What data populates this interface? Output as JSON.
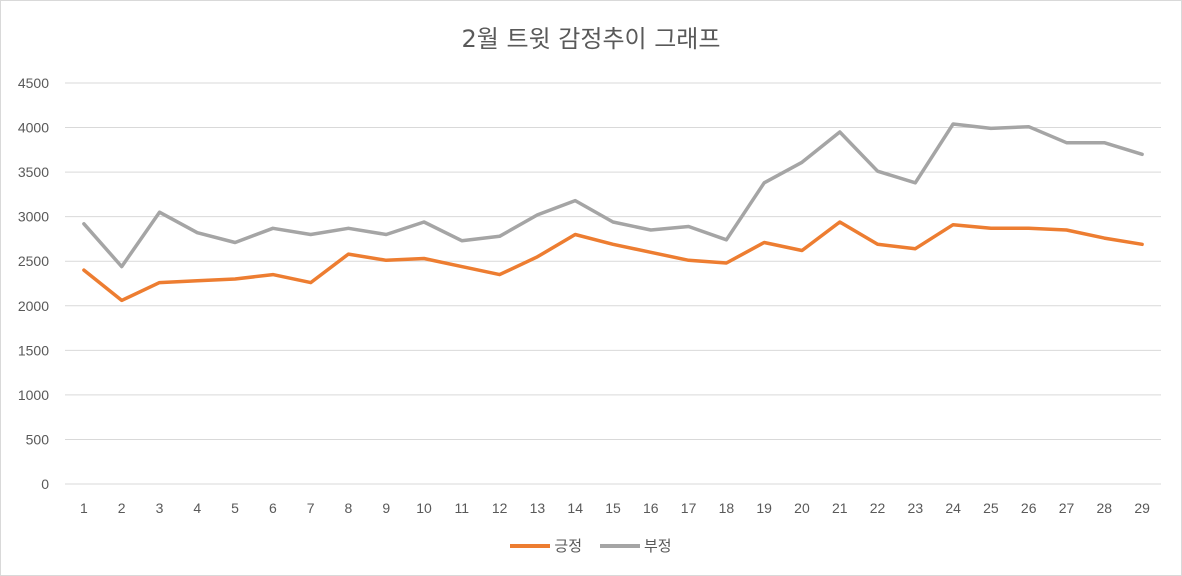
{
  "chart_data": {
    "type": "line",
    "title": "2월 트윗 감정추이 그래프",
    "xlabel": "",
    "ylabel": "",
    "categories": [
      "1",
      "2",
      "3",
      "4",
      "5",
      "6",
      "7",
      "8",
      "9",
      "10",
      "11",
      "12",
      "13",
      "14",
      "15",
      "16",
      "17",
      "18",
      "19",
      "20",
      "21",
      "22",
      "23",
      "24",
      "25",
      "26",
      "27",
      "28",
      "29"
    ],
    "yticks": [
      "0",
      "500",
      "1000",
      "1500",
      "2000",
      "2500",
      "3000",
      "3500",
      "4000",
      "4500"
    ],
    "ylim": [
      0,
      4500
    ],
    "grid": true,
    "legend_position": "bottom",
    "series": [
      {
        "name": "긍정",
        "color": "#ed7d31",
        "values": [
          2400,
          2060,
          2260,
          2280,
          2300,
          2350,
          2260,
          2580,
          2510,
          2530,
          2440,
          2350,
          2550,
          2800,
          2690,
          2600,
          2510,
          2480,
          2710,
          2620,
          2940,
          2690,
          2640,
          2910,
          2870,
          2870,
          2850,
          2760,
          2690
        ]
      },
      {
        "name": "부정",
        "color": "#a5a5a5",
        "values": [
          2920,
          2440,
          3050,
          2820,
          2710,
          2870,
          2800,
          2870,
          2800,
          2940,
          2730,
          2780,
          3020,
          3180,
          2940,
          2850,
          2890,
          2740,
          3380,
          3610,
          3950,
          3510,
          3380,
          4040,
          3990,
          4010,
          3830,
          3830,
          3700
        ]
      }
    ]
  }
}
